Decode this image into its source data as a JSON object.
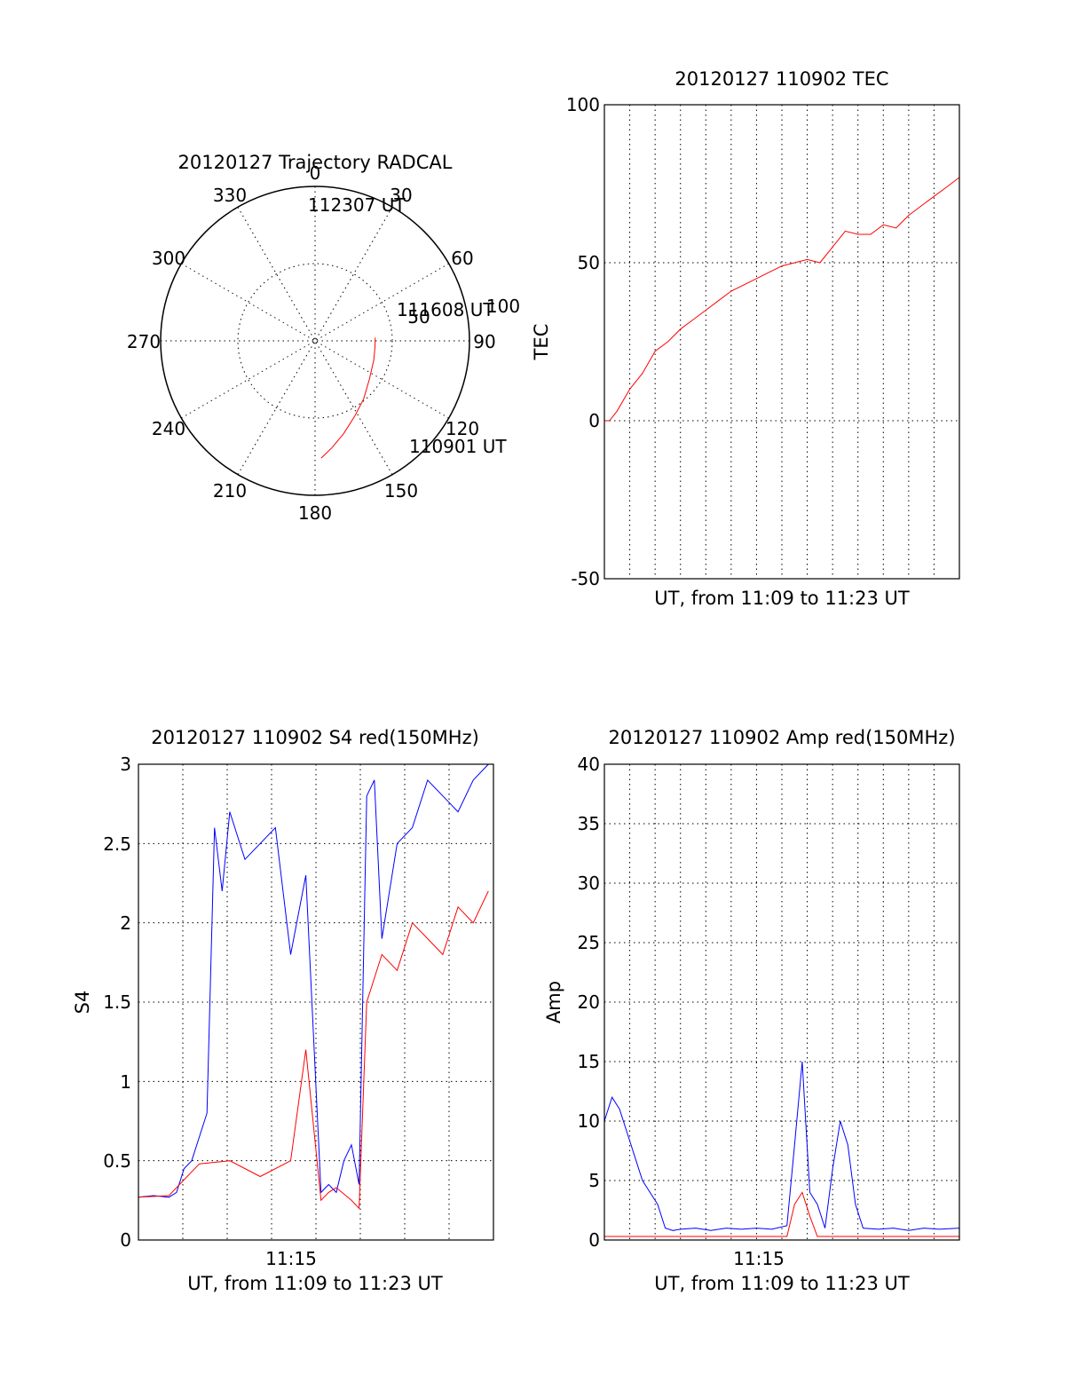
{
  "colors": {
    "red": "#ff0000",
    "blue": "#0000ff",
    "axis": "#000000",
    "background": "#ffffff"
  },
  "chart_data": [
    {
      "type": "polar",
      "title": "20120127 Trajectory RADCAL",
      "angle_labels": [
        "0",
        "30",
        "60",
        "90",
        "120",
        "150",
        "180",
        "210",
        "240",
        "270",
        "300",
        "330"
      ],
      "radial_labels": [
        "50",
        "100"
      ],
      "rlim": [
        0,
        100
      ],
      "grid": true,
      "series": [
        {
          "color": "#ff0000",
          "points": [
            {
              "azimuth": 177.0,
              "r": 76
            },
            {
              "azimuth": 171.0,
              "r": 70
            },
            {
              "azimuth": 163.0,
              "r": 63
            },
            {
              "azimuth": 152.0,
              "r": 55
            },
            {
              "azimuth": 140.0,
              "r": 49
            },
            {
              "azimuth": 125.0,
              "r": 43
            },
            {
              "azimuth": 108.0,
              "r": 40
            },
            {
              "azimuth": 96.0,
              "r": 39
            },
            {
              "azimuth": 87.0,
              "r": 39
            }
          ]
        }
      ],
      "annotations": [
        {
          "text": "112307 UT",
          "azimuth": 177.0,
          "r": 76
        },
        {
          "text": "111608 UT",
          "azimuth": 140.0,
          "r": 49
        },
        {
          "text": "110901 UT",
          "azimuth": 87.0,
          "r": 39
        }
      ]
    },
    {
      "type": "line",
      "title": "20120127 110902 TEC",
      "xlabel": "UT, from 11:09 to 11:23 UT",
      "ylabel": "TEC",
      "xlim": [
        11.15,
        11.3833
      ],
      "ylim": [
        -50,
        100
      ],
      "yticks": [
        "-50",
        "0",
        "50",
        "100"
      ],
      "xticks": [],
      "grid": true,
      "series": [
        {
          "color": "#ff0000",
          "x": [
            11.15,
            11.1533,
            11.1583,
            11.1667,
            11.175,
            11.1833,
            11.1917,
            11.2,
            11.2083,
            11.2167,
            11.225,
            11.2333,
            11.2417,
            11.25,
            11.2583,
            11.2667,
            11.275,
            11.2833,
            11.2917,
            11.3,
            11.3083,
            11.3167,
            11.325,
            11.3333,
            11.3417,
            11.35,
            11.3583,
            11.3667,
            11.375,
            11.3833
          ],
          "y": [
            0,
            -1,
            3,
            10,
            15,
            22,
            25,
            29,
            32,
            35,
            38,
            41,
            43,
            45,
            47,
            49,
            50,
            51,
            50,
            55,
            60,
            59,
            59,
            62,
            61,
            65,
            68,
            71,
            74,
            77
          ]
        }
      ]
    },
    {
      "type": "line",
      "title": "20120127 110902 S4 red(150MHz)",
      "xlabel": "UT, from 11:09 to 11:23 UT",
      "ylabel": "S4",
      "xlim": [
        11.15,
        11.3833
      ],
      "ylim": [
        0,
        3
      ],
      "xticks": [
        "11:15"
      ],
      "yticks": [
        "0",
        "0.5",
        "1",
        "1.5",
        "2",
        "2.5",
        "3"
      ],
      "grid": true,
      "series": [
        {
          "color": "#0000ff",
          "x": [
            11.15,
            11.16,
            11.17,
            11.175,
            11.18,
            11.185,
            11.19,
            11.195,
            11.2,
            11.205,
            11.21,
            11.22,
            11.23,
            11.24,
            11.25,
            11.26,
            11.27,
            11.275,
            11.28,
            11.285,
            11.29,
            11.295,
            11.3,
            11.305,
            11.31,
            11.32,
            11.33,
            11.34,
            11.35,
            11.36,
            11.37,
            11.38
          ],
          "y": [
            0.27,
            0.28,
            0.27,
            0.3,
            0.45,
            0.5,
            0.65,
            0.8,
            2.6,
            2.2,
            2.7,
            2.4,
            2.5,
            2.6,
            1.8,
            2.3,
            0.3,
            0.35,
            0.3,
            0.5,
            0.6,
            0.35,
            2.8,
            2.9,
            1.9,
            2.5,
            2.6,
            2.9,
            2.8,
            2.7,
            2.9,
            3.0
          ]
        },
        {
          "color": "#ff0000",
          "x": [
            11.15,
            11.17,
            11.19,
            11.21,
            11.23,
            11.25,
            11.26,
            11.27,
            11.275,
            11.28,
            11.29,
            11.295,
            11.3,
            11.31,
            11.32,
            11.33,
            11.34,
            11.35,
            11.36,
            11.37,
            11.38
          ],
          "y": [
            0.27,
            0.28,
            0.48,
            0.5,
            0.4,
            0.5,
            1.2,
            0.25,
            0.3,
            0.33,
            0.25,
            0.2,
            1.5,
            1.8,
            1.7,
            2.0,
            1.9,
            1.8,
            2.1,
            2.0,
            2.2
          ]
        }
      ]
    },
    {
      "type": "line",
      "title": "20120127 110902 Amp red(150MHz)",
      "xlabel": "UT, from 11:09 to 11:23 UT",
      "ylabel": "Amp",
      "xlim": [
        11.15,
        11.3833
      ],
      "ylim": [
        0,
        40
      ],
      "xticks": [
        "11:15"
      ],
      "yticks": [
        "0",
        "5",
        "10",
        "15",
        "20",
        "25",
        "30",
        "35",
        "40"
      ],
      "grid": true,
      "series": [
        {
          "color": "#0000ff",
          "x": [
            11.15,
            11.155,
            11.16,
            11.165,
            11.17,
            11.175,
            11.18,
            11.185,
            11.19,
            11.195,
            11.2,
            11.21,
            11.22,
            11.23,
            11.24,
            11.25,
            11.26,
            11.27,
            11.275,
            11.28,
            11.285,
            11.29,
            11.295,
            11.3,
            11.305,
            11.31,
            11.315,
            11.32,
            11.33,
            11.34,
            11.35,
            11.36,
            11.37,
            11.3833
          ],
          "y": [
            10,
            12,
            11,
            9,
            7,
            5,
            4,
            3,
            1,
            0.8,
            0.9,
            1.0,
            0.8,
            1.0,
            0.9,
            1.0,
            0.9,
            1.2,
            8,
            15,
            4,
            3,
            1,
            6,
            10,
            8,
            3,
            1.0,
            0.9,
            1.0,
            0.8,
            1.0,
            0.9,
            1.0
          ]
        },
        {
          "color": "#ff0000",
          "x": [
            11.15,
            11.16,
            11.17,
            11.18,
            11.19,
            11.2,
            11.21,
            11.22,
            11.23,
            11.24,
            11.25,
            11.26,
            11.27,
            11.275,
            11.28,
            11.285,
            11.29,
            11.3,
            11.31,
            11.32,
            11.33,
            11.34,
            11.35,
            11.36,
            11.37,
            11.3833
          ],
          "y": [
            0.3,
            0.3,
            0.3,
            0.3,
            0.3,
            0.3,
            0.3,
            0.3,
            0.3,
            0.3,
            0.3,
            0.3,
            0.3,
            3,
            4,
            2,
            0.3,
            0.3,
            0.3,
            0.3,
            0.3,
            0.3,
            0.3,
            0.3,
            0.3,
            0.3
          ]
        }
      ]
    }
  ]
}
